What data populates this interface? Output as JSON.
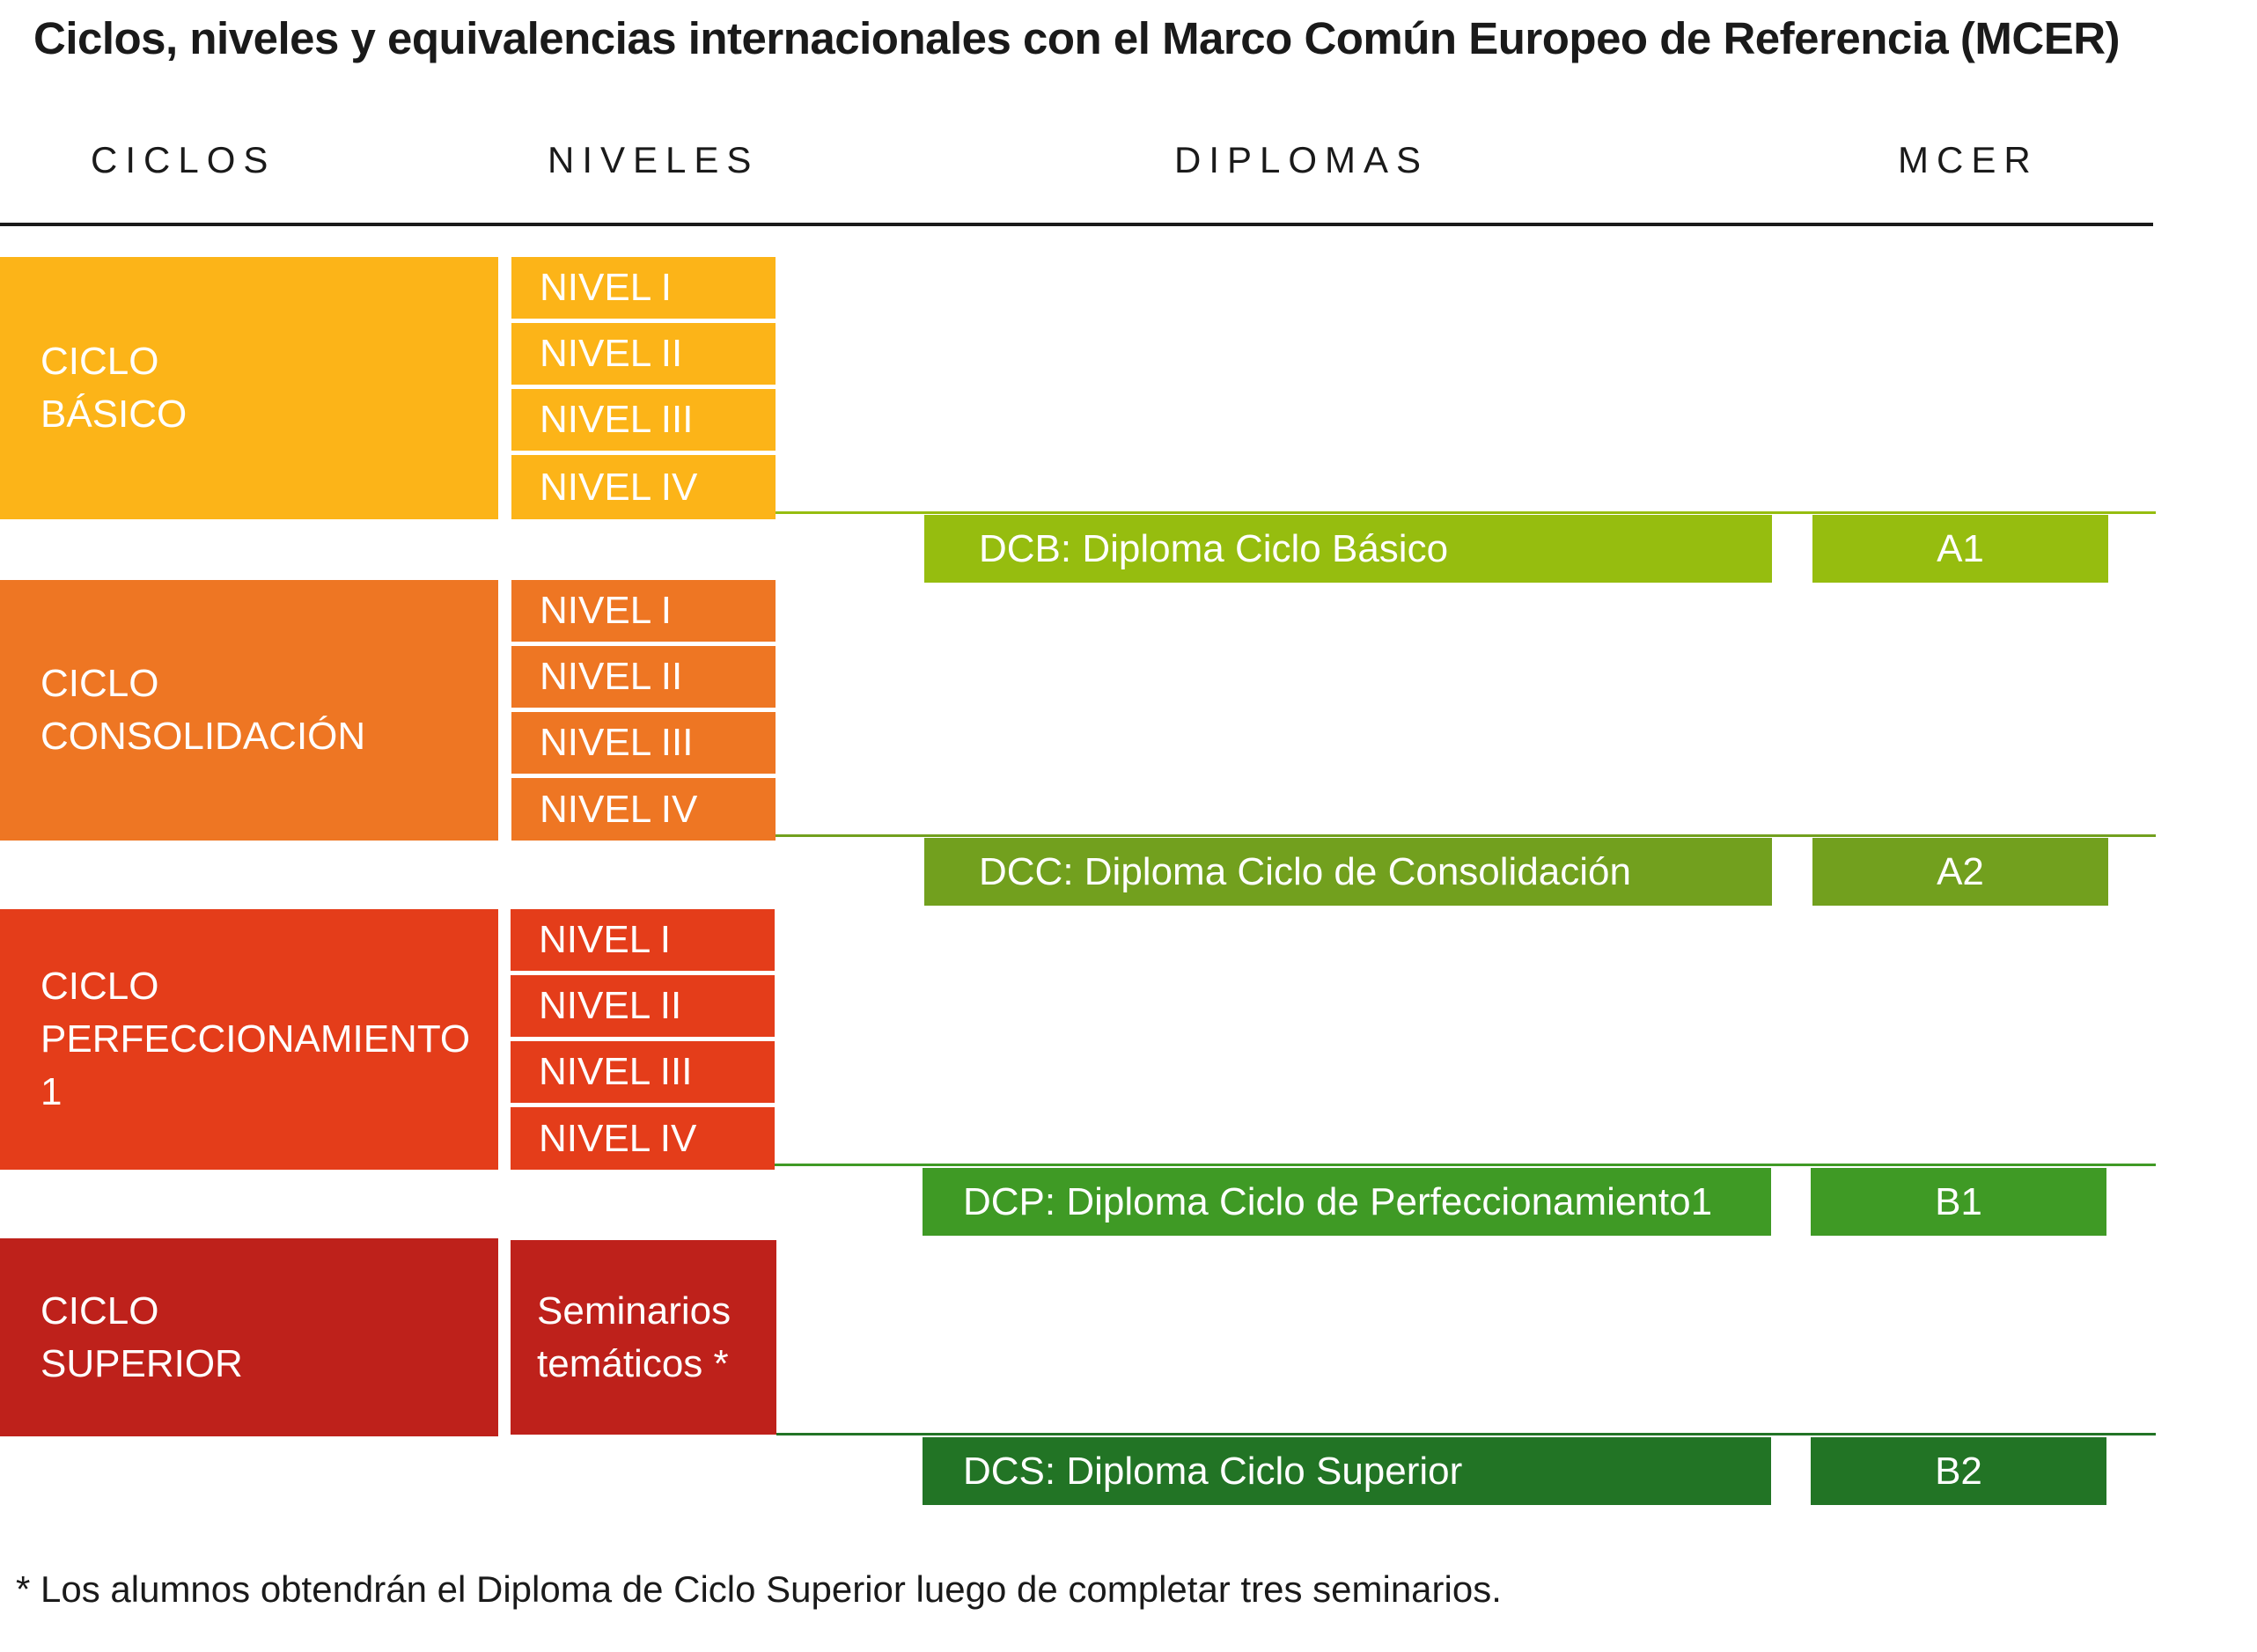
{
  "title": "Ciclos, niveles y equivalencias internacionales con el Marco Común Europeo de Referencia (MCER)",
  "headers": {
    "ciclos": "CICLOS",
    "niveles": "NIVELES",
    "diplomas": "DIPLOMAS",
    "mcer": "MCER"
  },
  "colors": {
    "ciclo_basico": "#FCB418",
    "ciclo_consolidacion": "#EE7623",
    "ciclo_perfeccionamiento": "#E43D1A",
    "ciclo_superior": "#BE211B",
    "dcb": "#96BD0F",
    "dcc": "#72A01E",
    "dcp": "#3F9A25",
    "dcs": "#227425"
  },
  "cycles": [
    {
      "line1": "CICLO",
      "line2": "BÁSICO",
      "levels": [
        "NIVEL I",
        "NIVEL II",
        "NIVEL III",
        "NIVEL IV"
      ],
      "diploma": "DCB: Diploma Ciclo Básico",
      "mcer": "A1"
    },
    {
      "line1": "CICLO",
      "line2": "CONSOLIDACIÓN",
      "levels": [
        "NIVEL I",
        "NIVEL II",
        "NIVEL III",
        "NIVEL IV"
      ],
      "diploma": "DCC: Diploma Ciclo de Consolidación",
      "mcer": "A2"
    },
    {
      "line1": "CICLO",
      "line2": "PERFECCIONAMIENTO 1",
      "levels": [
        "NIVEL I",
        "NIVEL II",
        "NIVEL III",
        "NIVEL IV"
      ],
      "diploma": "DCP: Diploma Ciclo de Perfeccionamiento1",
      "mcer": "B1"
    },
    {
      "line1": "CICLO",
      "line2": "SUPERIOR",
      "seminar_line1": "Seminarios",
      "seminar_line2": "temáticos *",
      "diploma": "DCS: Diploma Ciclo Superior",
      "mcer": "B2"
    }
  ],
  "footnote": "*  Los alumnos obtendrán el Diploma de Ciclo Superior luego de completar tres seminarios."
}
